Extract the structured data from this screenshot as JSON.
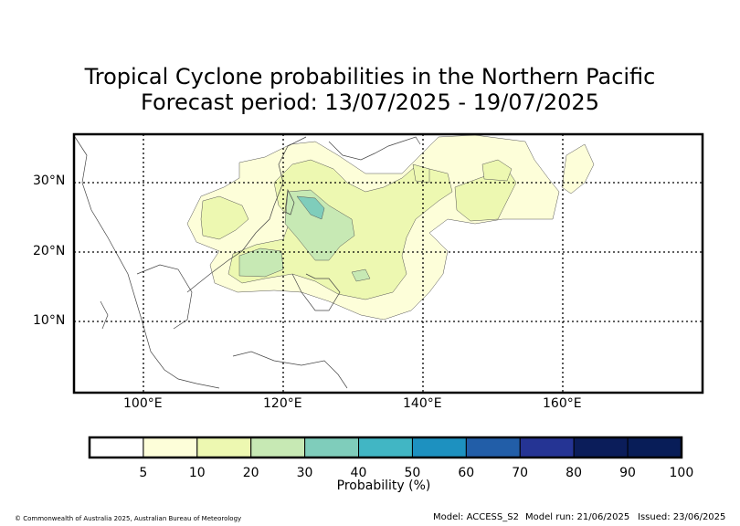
{
  "title_line1": "Tropical Cyclone probabilities in the Northern Pacific",
  "title_line2": "Forecast period: 13/07/2025 - 19/07/2025",
  "lat_labels": [
    "30°N",
    "20°N",
    "10°N"
  ],
  "lon_labels": [
    "100°E",
    "120°E",
    "140°E",
    "160°E"
  ],
  "colorbar": {
    "ticks": [
      "5",
      "10",
      "20",
      "30",
      "40",
      "50",
      "60",
      "70",
      "80",
      "90",
      "100"
    ],
    "label": "Probability (%)",
    "colors": [
      "#ffffff",
      "#fdfed9",
      "#edf8b1",
      "#c7e9b4",
      "#7fcdbb",
      "#41b6c4",
      "#1d91c0",
      "#225ea8",
      "#253494",
      "#0b1d5a",
      "#081d58"
    ]
  },
  "footer": {
    "copyright": "© Commonwealth of Australia 2025, Australian Bureau of Meteorology",
    "model": "Model: ACCESS_S2",
    "model_run": "Model run: 21/06/2025",
    "issued": "Issued: 23/06/2025"
  }
}
